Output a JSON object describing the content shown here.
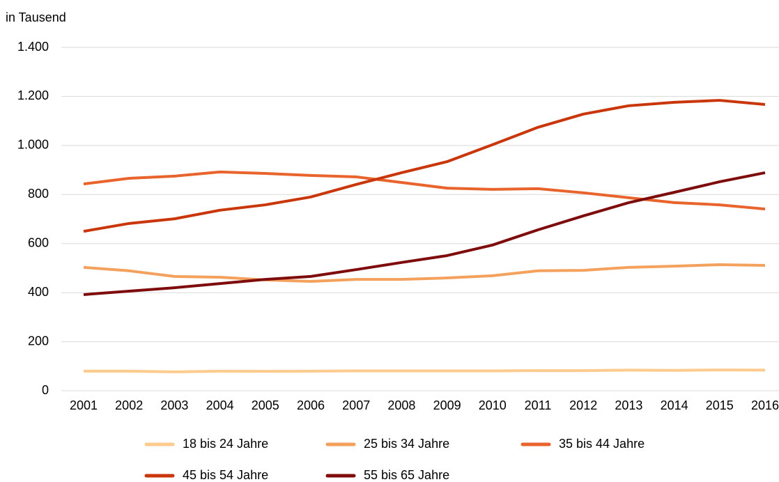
{
  "chart_data": {
    "type": "line",
    "y_label": "in Tausend",
    "categories": [
      "2001",
      "2002",
      "2003",
      "2004",
      "2005",
      "2006",
      "2007",
      "2008",
      "2009",
      "2010",
      "2011",
      "2012",
      "2013",
      "2014",
      "2015",
      "2016"
    ],
    "series": [
      {
        "name": "18 bis 24 Jahre",
        "color": "#fdcb8d",
        "values": [
          80,
          80,
          77,
          80,
          79,
          80,
          81,
          81,
          81,
          81,
          82,
          82,
          84,
          83,
          85,
          84
        ]
      },
      {
        "name": "25 bis 34 Jahre",
        "color": "#f4a15d",
        "values": [
          503,
          489,
          466,
          463,
          452,
          446,
          454,
          454,
          460,
          469,
          489,
          491,
          503,
          508,
          514,
          511
        ]
      },
      {
        "name": "35 bis 44 Jahre",
        "color": "#e8642c",
        "values": [
          843,
          866,
          875,
          892,
          886,
          878,
          872,
          849,
          826,
          821,
          824,
          807,
          787,
          767,
          758,
          741
        ]
      },
      {
        "name": "45 bis 54 Jahre",
        "color": "#c9360a",
        "values": [
          650,
          682,
          701,
          736,
          758,
          790,
          841,
          889,
          934,
          1003,
          1074,
          1128,
          1162,
          1176,
          1184,
          1167
        ]
      },
      {
        "name": "55 bis 65 Jahre",
        "color": "#7f0c0c",
        "values": [
          392,
          406,
          420,
          437,
          454,
          466,
          494,
          523,
          551,
          594,
          656,
          713,
          767,
          809,
          852,
          889
        ]
      }
    ],
    "ylim": [
      0,
      1400
    ],
    "yticks": [
      0,
      200,
      400,
      600,
      800,
      {
        "value": 1000,
        "label": "1.000"
      },
      {
        "value": 1200,
        "label": "1.200"
      },
      {
        "value": 1400,
        "label": "1.400"
      }
    ],
    "grid": true,
    "legend": "bottom"
  }
}
